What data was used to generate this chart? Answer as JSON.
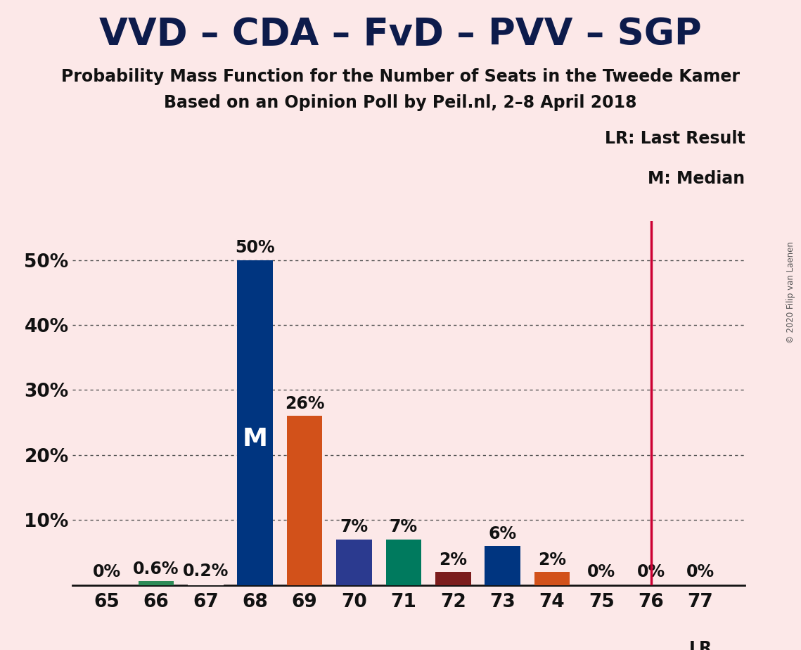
{
  "title": "VVD – CDA – FvD – PVV – SGP",
  "subtitle1": "Probability Mass Function for the Number of Seats in the Tweede Kamer",
  "subtitle2": "Based on an Opinion Poll by Peil.nl, 2–8 April 2018",
  "copyright": "© 2020 Filip van Laenen",
  "seats": [
    65,
    66,
    67,
    68,
    69,
    70,
    71,
    72,
    73,
    74,
    75,
    76,
    77
  ],
  "probabilities": [
    0.0,
    0.6,
    0.2,
    50.0,
    26.0,
    7.0,
    7.0,
    2.0,
    6.0,
    2.0,
    0.0,
    0.0,
    0.0
  ],
  "bar_colors": [
    "#fce8e8",
    "#2e8b57",
    "#fce8e8",
    "#003580",
    "#d2511a",
    "#2b3a8f",
    "#007a5e",
    "#7b1c1c",
    "#003580",
    "#d2511a",
    "#fce8e8",
    "#fce8e8",
    "#fce8e8"
  ],
  "labels": [
    "0%",
    "0.6%",
    "0.2%",
    "50%",
    "26%",
    "7%",
    "7%",
    "2%",
    "6%",
    "2%",
    "0%",
    "0%",
    "0%"
  ],
  "median_seat": 68,
  "last_result_seat": 76,
  "background_color": "#fce8e8",
  "bar_width": 0.72,
  "ylim": [
    0,
    56
  ],
  "yticks": [
    10,
    20,
    30,
    40,
    50
  ],
  "ytick_labels": [
    "10%",
    "20%",
    "30%",
    "40%",
    "50%"
  ],
  "grid_yticks": [
    10,
    20,
    30,
    40,
    50
  ],
  "legend_lr_label": "LR: Last Result",
  "legend_m_label": "M: Median",
  "lr_label": "LR",
  "title_fontsize": 38,
  "subtitle_fontsize": 17,
  "axis_tick_fontsize": 19,
  "bar_label_fontsize": 17,
  "legend_fontsize": 17,
  "last_result_color": "#cc0033",
  "title_color": "#0d1b4b",
  "text_color": "#111111"
}
